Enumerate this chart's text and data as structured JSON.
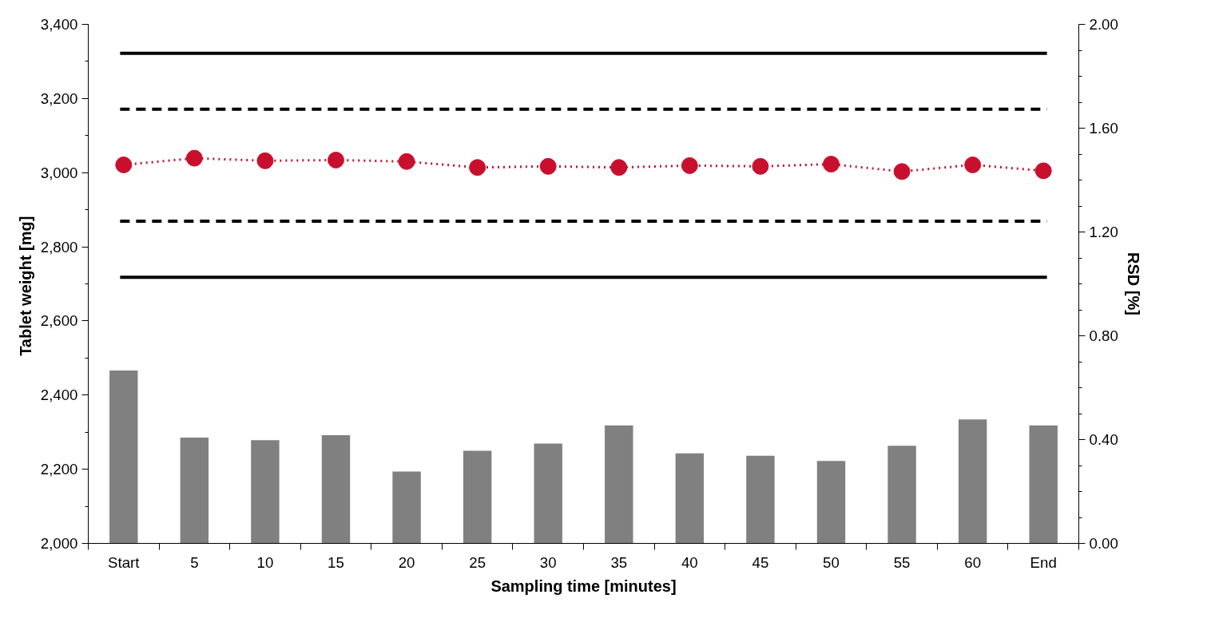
{
  "chart_data": {
    "type": "line",
    "xlabel": "Sampling time [minutes]",
    "ylabel": "Tablet weight  [mg]",
    "y2label": "RSD [%]",
    "categories": [
      "Start",
      "5",
      "10",
      "15",
      "20",
      "25",
      "30",
      "35",
      "40",
      "45",
      "50",
      "55",
      "60",
      "End"
    ],
    "series": [
      {
        "type": "bar",
        "axis": "y2",
        "color": "#808080",
        "values": [
          0.666,
          0.408,
          0.398,
          0.417,
          0.277,
          0.357,
          0.385,
          0.455,
          0.347,
          0.338,
          0.318,
          0.376,
          0.478,
          0.455
        ]
      },
      {
        "color": "#c8102e",
        "marker": "circle",
        "line_style": "dotted",
        "values": [
          3021,
          3039,
          3032,
          3034,
          3030,
          3014,
          3017,
          3014,
          3019,
          3017,
          3023,
          3003,
          3021,
          3005
        ]
      }
    ],
    "ylim": [
      2000,
      3400
    ],
    "yticks": [
      {
        "value": 2000,
        "label": "2,000"
      },
      {
        "value": 2200,
        "label": "2,200"
      },
      {
        "value": 2400,
        "label": "2,400"
      },
      {
        "value": 2600,
        "label": "2,600"
      },
      {
        "value": 2800,
        "label": "2,800"
      },
      {
        "value": 3000,
        "label": "3,000"
      },
      {
        "value": 3200,
        "label": "3,200"
      },
      {
        "value": 3400,
        "label": "3,400"
      }
    ],
    "y2lim": [
      0,
      2
    ],
    "y2ticks": [
      {
        "value": 0,
        "label": "0.00"
      },
      {
        "value": 0.4,
        "label": "0.40"
      },
      {
        "value": 0.8,
        "label": "0.80"
      },
      {
        "value": 1.2,
        "label": "1.20"
      },
      {
        "value": 1.6,
        "label": "1.60"
      },
      {
        "value": 2,
        "label": "2.00"
      }
    ],
    "ref_lines": [
      {
        "axis": "y",
        "value": 3322,
        "color": "#000000",
        "line_style": "solid"
      },
      {
        "axis": "y",
        "value": 3171,
        "color": "#000000",
        "line_style": "dashed"
      },
      {
        "axis": "y",
        "value": 2869,
        "color": "#000000",
        "line_style": "dashed"
      },
      {
        "axis": "y",
        "value": 2718,
        "color": "#000000",
        "line_style": "solid"
      }
    ],
    "grid": false
  }
}
